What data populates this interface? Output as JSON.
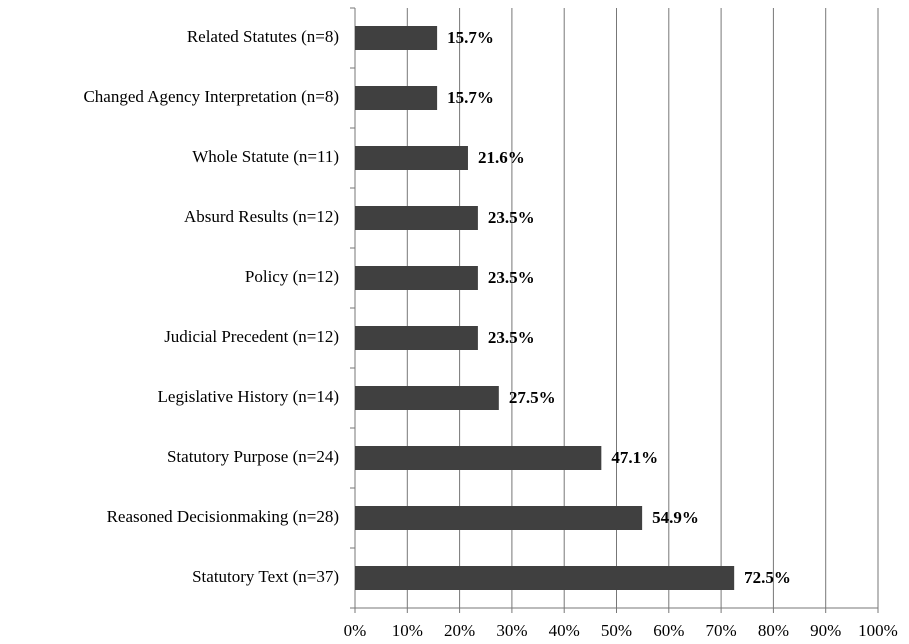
{
  "chart_data": {
    "type": "hbar",
    "categories": [
      "Related Statutes (n=8)",
      "Changed Agency Interpretation (n=8)",
      "Whole Statute (n=11)",
      "Absurd Results (n=12)",
      "Policy (n=12)",
      "Judicial Precedent (n=12)",
      "Legislative History (n=14)",
      "Statutory Purpose (n=24)",
      "Reasoned Decisionmaking (n=28)",
      "Statutory Text (n=37)"
    ],
    "values": [
      15.7,
      15.7,
      21.6,
      23.5,
      23.5,
      23.5,
      27.5,
      47.1,
      54.9,
      72.5
    ],
    "value_labels": [
      "15.7%",
      "15.7%",
      "21.6%",
      "23.5%",
      "23.5%",
      "23.5%",
      "27.5%",
      "47.1%",
      "54.9%",
      "72.5%"
    ],
    "color": "#404040",
    "xlim": [
      0,
      100
    ],
    "xticks": [
      {
        "value": 0,
        "label": "0%"
      },
      {
        "value": 10,
        "label": "10%"
      },
      {
        "value": 20,
        "label": "20%"
      },
      {
        "value": 30,
        "label": "30%"
      },
      {
        "value": 40,
        "label": "40%"
      },
      {
        "value": 50,
        "label": "50%"
      },
      {
        "value": 60,
        "label": "60%"
      },
      {
        "value": 70,
        "label": "70%"
      },
      {
        "value": 80,
        "label": "80%"
      },
      {
        "value": 90,
        "label": "90%"
      },
      {
        "value": 100,
        "label": "100%"
      }
    ],
    "grid": true
  }
}
